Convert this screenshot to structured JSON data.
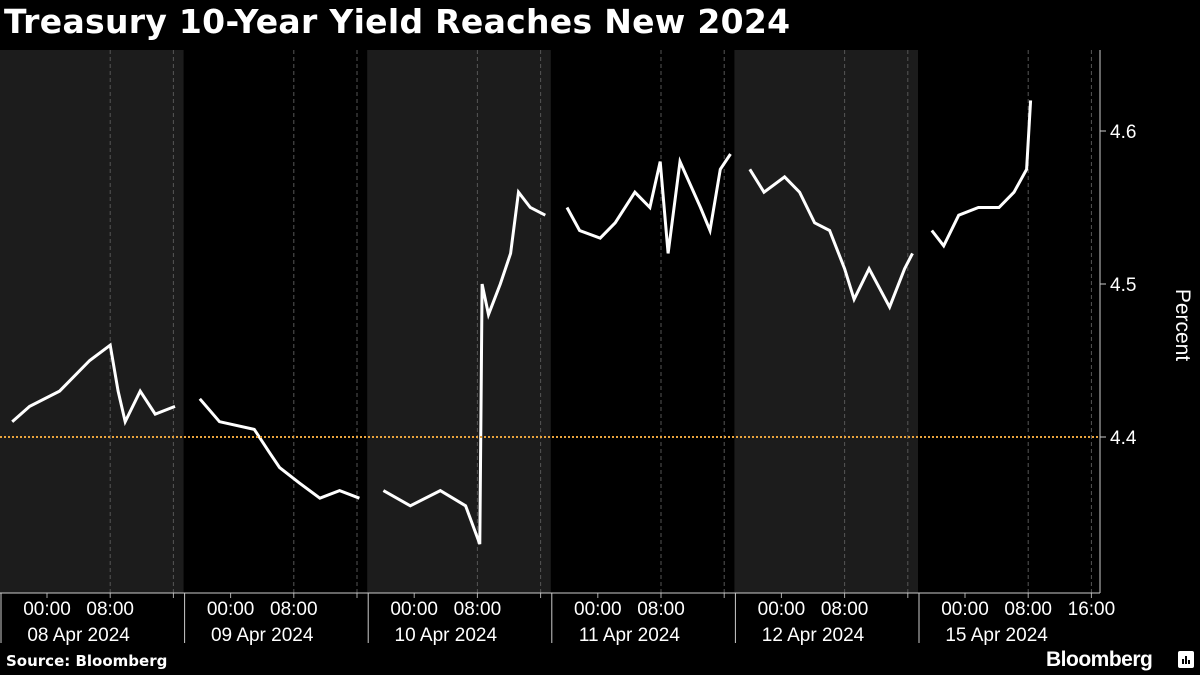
{
  "title": "Treasury 10-Year Yield Reaches New 2024",
  "source": "Source: Bloomberg",
  "brand": "Bloomberg",
  "colors": {
    "background": "#000000",
    "shade": "#1c1c1c",
    "line": "#ffffff",
    "reference": "#e8a33d"
  },
  "chart_data": {
    "type": "line",
    "ylabel": "Percent",
    "y_axis_position": "right",
    "ylim": [
      4.3,
      4.65
    ],
    "yticks": [
      "4.4",
      "4.5",
      "4.6"
    ],
    "ytick_values": [
      4.4,
      4.5,
      4.6
    ],
    "reference_line": {
      "value": 4.4,
      "style": "dotted",
      "color": "#e8a33d"
    },
    "grid": false,
    "time_labels": [
      "00:00",
      "08:00",
      "16:00"
    ],
    "days": [
      {
        "label": "08 Apr 2024",
        "shaded": true,
        "tick_labels": [
          "00:00",
          "08:00"
        ],
        "points": [
          [
            -4.4,
            4.41
          ],
          [
            -2.2,
            4.42
          ],
          [
            1.6,
            4.43
          ],
          [
            5.4,
            4.45
          ],
          [
            8.0,
            4.46
          ],
          [
            9.0,
            4.43
          ],
          [
            9.9,
            4.41
          ],
          [
            11.8,
            4.43
          ],
          [
            13.7,
            4.415
          ],
          [
            16.2,
            4.42
          ]
        ]
      },
      {
        "label": "09 Apr 2024",
        "shaded": false,
        "tick_labels": [
          "00:00",
          "08:00"
        ],
        "points": [
          [
            -3.9,
            4.425
          ],
          [
            -1.4,
            4.41
          ],
          [
            3.0,
            4.405
          ],
          [
            4.9,
            4.39
          ],
          [
            6.2,
            4.38
          ],
          [
            8.7,
            4.37
          ],
          [
            11.3,
            4.36
          ],
          [
            13.8,
            4.365
          ],
          [
            16.3,
            4.36
          ]
        ]
      },
      {
        "label": "10 Apr 2024",
        "shaded": true,
        "tick_labels": [
          "00:00",
          "08:00"
        ],
        "points": [
          [
            -3.9,
            4.365
          ],
          [
            -0.5,
            4.355
          ],
          [
            3.3,
            4.365
          ],
          [
            6.5,
            4.355
          ],
          [
            8.3,
            4.33
          ],
          [
            8.6,
            4.5
          ],
          [
            9.4,
            4.48
          ],
          [
            10.9,
            4.5
          ],
          [
            12.2,
            4.52
          ],
          [
            13.2,
            4.56
          ],
          [
            14.7,
            4.55
          ],
          [
            16.6,
            4.545
          ]
        ]
      },
      {
        "label": "11 Apr 2024",
        "shaded": false,
        "tick_labels": [
          "00:00",
          "08:00"
        ],
        "points": [
          [
            -3.9,
            4.55
          ],
          [
            -2.3,
            4.535
          ],
          [
            0.3,
            4.53
          ],
          [
            2.2,
            4.54
          ],
          [
            4.7,
            4.56
          ],
          [
            6.6,
            4.55
          ],
          [
            7.9,
            4.58
          ],
          [
            8.9,
            4.52
          ],
          [
            10.4,
            4.58
          ],
          [
            13.0,
            4.55
          ],
          [
            14.2,
            4.535
          ],
          [
            15.5,
            4.575
          ],
          [
            16.8,
            4.585
          ]
        ]
      },
      {
        "label": "12 Apr 2024",
        "shaded": true,
        "tick_labels": [
          "00:00",
          "08:00"
        ],
        "points": [
          [
            -4.0,
            4.575
          ],
          [
            -2.2,
            4.56
          ],
          [
            0.4,
            4.57
          ],
          [
            2.3,
            4.56
          ],
          [
            4.2,
            4.54
          ],
          [
            6.1,
            4.535
          ],
          [
            8.0,
            4.51
          ],
          [
            9.2,
            4.49
          ],
          [
            11.1,
            4.51
          ],
          [
            13.7,
            4.485
          ],
          [
            15.6,
            4.51
          ],
          [
            16.6,
            4.52
          ]
        ]
      },
      {
        "label": "15 Apr 2024",
        "shaded": false,
        "tick_labels": [
          "00:00",
          "08:00",
          "16:00"
        ],
        "points": [
          [
            -4.2,
            4.535
          ],
          [
            -2.7,
            4.525
          ],
          [
            -0.8,
            4.545
          ],
          [
            1.7,
            4.55
          ],
          [
            4.3,
            4.55
          ],
          [
            6.2,
            4.56
          ],
          [
            7.8,
            4.575
          ],
          [
            8.3,
            4.62
          ]
        ]
      }
    ]
  }
}
